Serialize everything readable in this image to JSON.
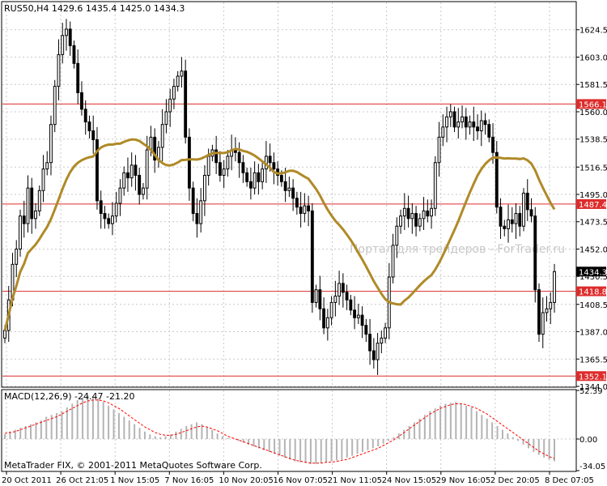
{
  "colors": {
    "background": "#ffffff",
    "grid": "#c8c8c8",
    "bull_candle": "#ffffff",
    "bear_candle": "#000000",
    "ma_line": "#b08a28",
    "level_line": "#dd2c2c",
    "level_label_bg": "#dd2c2c",
    "macd_hist": "#b4b4b4",
    "macd_signal": "#ff0000",
    "watermark": "#c8c8c8",
    "current_price_bg": "#000000"
  },
  "header": {
    "symbol_info": "RUS50,H4  1429.6  1435.4  1425.0  1434.3"
  },
  "watermark": "Портал для трейдеров - ForTrader.ru",
  "footer": {
    "copyright": "MetaTrader FIX, © 2001-2011 MetaQuotes Software Corp."
  },
  "chart_data": [
    {
      "type": "candlestick",
      "title": "RUS50,H4",
      "ylim": [
        1344.0,
        1646.0
      ],
      "price_ticks": [
        "1624.5",
        "1603.0",
        "1581.5",
        "1560.0",
        "1538.5",
        "1516.5",
        "1495.0",
        "1473.5",
        "1452.0",
        "1430.5",
        "1408.5",
        "1387.0",
        "1365.5",
        "1344.0"
      ],
      "current_price": "1434.3",
      "levels": [
        {
          "label": "1566.1",
          "value": 1566.1
        },
        {
          "label": "1487.4",
          "value": 1487.4
        },
        {
          "label": "1418.8",
          "value": 1418.8
        },
        {
          "label": "1352.1",
          "value": 1352.1
        }
      ],
      "time_labels": [
        "20 Oct 2011",
        "26 Oct 21:05",
        "1 Nov 15:05",
        "7 Nov 16:05",
        "10 Nov 20:05",
        "16 Nov 07:05",
        "21 Nov 11:05",
        "24 Nov 15:05",
        "29 Nov 16:05",
        "2 Dec 20:05",
        "8 Dec 07:05"
      ],
      "closes": [
        1388,
        1412,
        1440,
        1452,
        1478,
        1472,
        1500,
        1476,
        1482,
        1498,
        1515,
        1520,
        1550,
        1580,
        1605,
        1620,
        1625,
        1612,
        1598,
        1575,
        1562,
        1552,
        1545,
        1538,
        1490,
        1480,
        1476,
        1472,
        1478,
        1488,
        1500,
        1512,
        1508,
        1518,
        1510,
        1495,
        1500,
        1530,
        1540,
        1522,
        1532,
        1550,
        1560,
        1570,
        1580,
        1588,
        1592,
        1540,
        1500,
        1480,
        1472,
        1490,
        1510,
        1525,
        1530,
        1520,
        1510,
        1515,
        1525,
        1530,
        1528,
        1520,
        1512,
        1505,
        1500,
        1512,
        1505,
        1515,
        1525,
        1520,
        1515,
        1510,
        1505,
        1498,
        1500,
        1492,
        1485,
        1480,
        1486,
        1482,
        1410,
        1420,
        1405,
        1390,
        1398,
        1410,
        1415,
        1425,
        1418,
        1412,
        1404,
        1398,
        1400,
        1392,
        1385,
        1372,
        1365,
        1378,
        1382,
        1390,
        1430,
        1455,
        1470,
        1478,
        1484,
        1476,
        1480,
        1470,
        1476,
        1482,
        1478,
        1484,
        1520,
        1540,
        1548,
        1556,
        1560,
        1548,
        1552,
        1556,
        1548,
        1552,
        1548,
        1545,
        1553,
        1550,
        1540,
        1528,
        1485,
        1470,
        1468,
        1475,
        1472,
        1480,
        1470,
        1496,
        1483,
        1478,
        1420,
        1385,
        1402,
        1405,
        1410,
        1434.3
      ],
      "ma_period": 200,
      "yaxis_position": "right"
    },
    {
      "type": "histogram",
      "title": "MACD(12,26,9) -24.47 -21.20",
      "ylim": [
        -34.05,
        52.39
      ],
      "value_ticks": [
        "52.39",
        "0.00",
        "-34.05"
      ],
      "series_main": "histogram",
      "series_signal": "signal line (dashed)",
      "hist_values": [
        5,
        8,
        10,
        12,
        14,
        16,
        18,
        20,
        24,
        26,
        28,
        30,
        34,
        38,
        42,
        45,
        47,
        46,
        44,
        40,
        36,
        32,
        28,
        24,
        20,
        16,
        12,
        8,
        5,
        3,
        2,
        3,
        5,
        8,
        11,
        14,
        16,
        18,
        16,
        13,
        10,
        6,
        3,
        1,
        0,
        -2,
        -4,
        -6,
        -8,
        -10,
        -12,
        -14,
        -16,
        -18,
        -20,
        -22,
        -24,
        -25,
        -26,
        -27,
        -27,
        -26,
        -25,
        -24,
        -23,
        -22,
        -20,
        -18,
        -16,
        -14,
        -12,
        -10,
        -8,
        -5,
        -2,
        2,
        6,
        10,
        14,
        18,
        22,
        26,
        30,
        33,
        36,
        38,
        39,
        40,
        38,
        36,
        34,
        30,
        26,
        22,
        18,
        14,
        10,
        6,
        2,
        -2,
        -6,
        -10,
        -14,
        -17,
        -20,
        -22,
        -24
      ],
      "signal_values": [
        6,
        7,
        8,
        10,
        12,
        14,
        16,
        18,
        20,
        22,
        24,
        27,
        30,
        33,
        36,
        39,
        41,
        42,
        42,
        41,
        39,
        36,
        33,
        29,
        25,
        21,
        17,
        13,
        10,
        7,
        5,
        4,
        4,
        5,
        7,
        9,
        11,
        13,
        14,
        13,
        11,
        9,
        6,
        3,
        1,
        -1,
        -3,
        -5,
        -7,
        -9,
        -11,
        -13,
        -15,
        -17,
        -19,
        -21,
        -23,
        -24,
        -25,
        -26,
        -26,
        -26,
        -25,
        -25,
        -24,
        -23,
        -22,
        -20,
        -18,
        -16,
        -14,
        -12,
        -10,
        -7,
        -4,
        -1,
        3,
        7,
        11,
        15,
        19,
        23,
        27,
        30,
        33,
        35,
        37,
        38,
        38,
        37,
        35,
        33,
        30,
        27,
        23,
        19,
        15,
        11,
        7,
        3,
        -1,
        -5,
        -9,
        -13,
        -16,
        -19,
        -21
      ],
      "yaxis_position": "right"
    }
  ]
}
